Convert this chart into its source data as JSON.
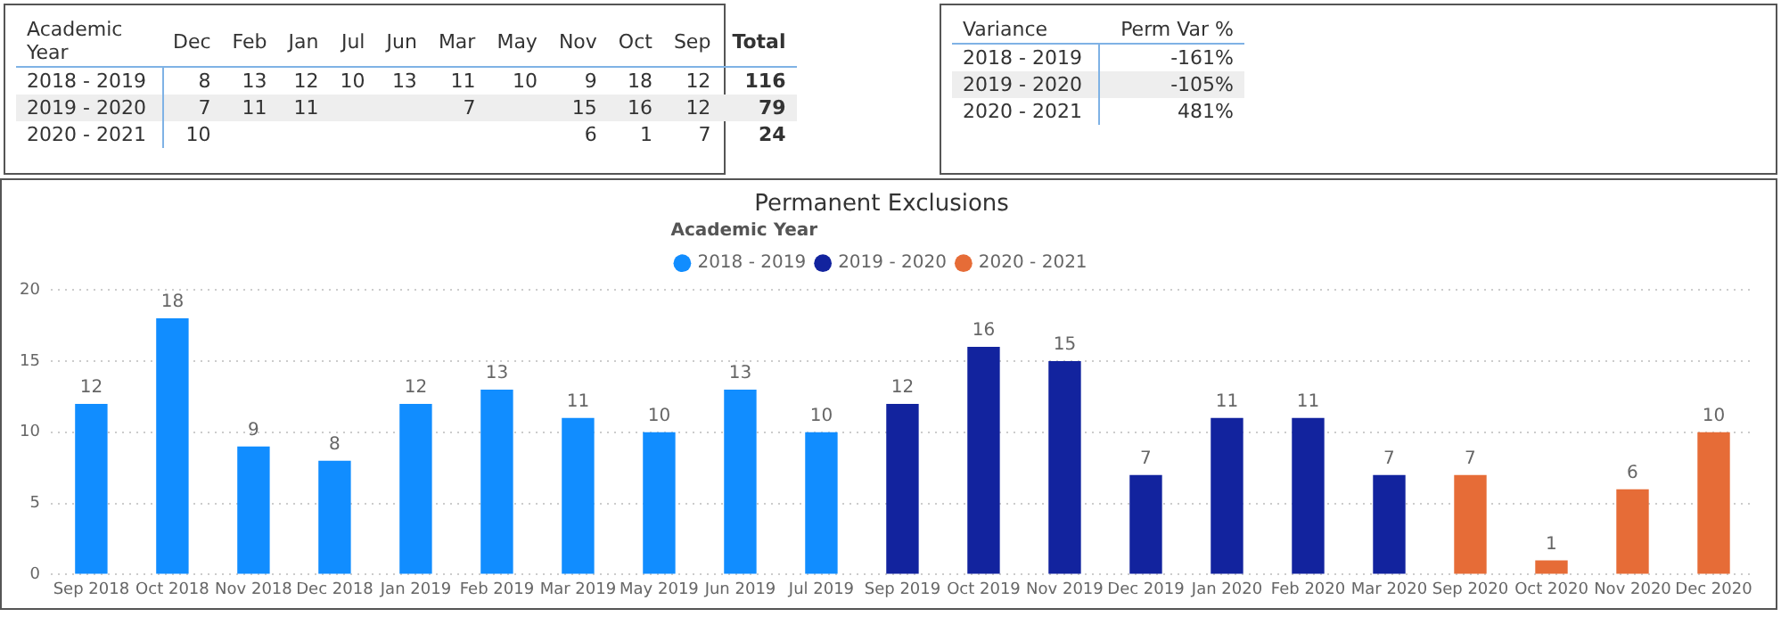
{
  "chart_data": [
    {
      "type": "other",
      "categories": [
        "Academic Year",
        "Dec",
        "Feb",
        "Jan",
        "Jul",
        "Jun",
        "Mar",
        "May",
        "Nov",
        "Oct",
        "Sep",
        "Total"
      ],
      "y_categories": [
        "2018 - 2019",
        "2019 - 2020",
        "2020 - 2021"
      ],
      "cell_labels": [
        [
          "8",
          "13",
          "12",
          "10",
          "13",
          "11",
          "10",
          "9",
          "18",
          "12",
          "116"
        ],
        [
          "7",
          "11",
          "11",
          null,
          null,
          "7",
          null,
          "15",
          "16",
          "12",
          "79"
        ],
        [
          "10",
          null,
          null,
          null,
          null,
          null,
          null,
          "6",
          "1",
          "7",
          "24"
        ]
      ]
    },
    {
      "type": "other",
      "categories": [
        "Variance",
        "Perm Var %"
      ],
      "y_categories": [
        "2018 - 2019",
        "2019 - 2020",
        "2020 - 2021"
      ],
      "cell_labels": [
        [
          "-161%"
        ],
        [
          "-105%"
        ],
        [
          "481%"
        ]
      ]
    },
    {
      "type": "bar",
      "title": "Permanent Exclusions",
      "legend_title": "Academic Year",
      "legend": "top",
      "categories": [
        "Sep 2018",
        "Oct 2018",
        "Nov 2018",
        "Dec 2018",
        "Jan 2019",
        "Feb 2019",
        "Mar 2019",
        "May 2019",
        "Jun 2019",
        "Jul 2019",
        "Sep 2019",
        "Oct 2019",
        "Nov 2019",
        "Dec 2019",
        "Jan 2020",
        "Feb 2020",
        "Mar 2020",
        "Sep 2020",
        "Oct 2020",
        "Nov 2020",
        "Dec 2020"
      ],
      "series": [
        {
          "name": "2018 - 2019",
          "color": "#118dff",
          "values": [
            12,
            18,
            9,
            8,
            12,
            13,
            11,
            10,
            13,
            10,
            null,
            null,
            null,
            null,
            null,
            null,
            null,
            null,
            null,
            null,
            null
          ]
        },
        {
          "name": "2019 - 2020",
          "color": "#12239e",
          "values": [
            null,
            null,
            null,
            null,
            null,
            null,
            null,
            null,
            null,
            null,
            12,
            16,
            15,
            7,
            11,
            11,
            7,
            null,
            null,
            null,
            null
          ]
        },
        {
          "name": "2020 - 2021",
          "color": "#e66c37",
          "values": [
            null,
            null,
            null,
            null,
            null,
            null,
            null,
            null,
            null,
            null,
            null,
            null,
            null,
            null,
            null,
            null,
            null,
            7,
            1,
            6,
            10
          ]
        }
      ],
      "ylim": [
        0,
        20
      ],
      "yticks": [
        0,
        5,
        10,
        15,
        20
      ],
      "grid": "y",
      "data_labels": true
    }
  ]
}
